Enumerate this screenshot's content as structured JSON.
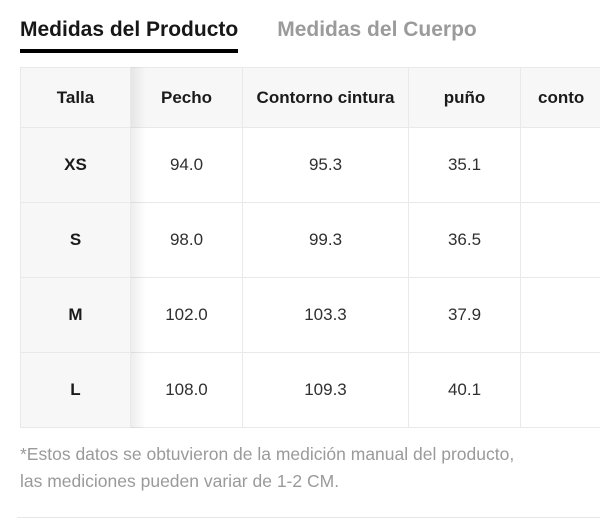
{
  "tabs": {
    "product": {
      "label": "Medidas del Producto",
      "active": true
    },
    "body": {
      "label": "Medidas del Cuerpo",
      "active": false
    }
  },
  "table": {
    "columns": [
      "Talla",
      "Pecho",
      "Contorno cintura",
      "puño",
      "conto"
    ],
    "rows": [
      [
        "XS",
        "94.0",
        "95.3",
        "35.1",
        ""
      ],
      [
        "S",
        "98.0",
        "99.3",
        "36.5",
        ""
      ],
      [
        "M",
        "102.0",
        "103.3",
        "37.9",
        ""
      ],
      [
        "L",
        "108.0",
        "109.3",
        "40.1",
        ""
      ]
    ],
    "unit_note_visible": false
  },
  "footnote": {
    "line1": "*Estos datos se obtuvieron de la medición manual del producto,",
    "line2": "las mediciones pueden variar de 1-2 CM."
  },
  "colors": {
    "tab_active": "#171717",
    "tab_inactive": "#9b9b9b",
    "tab_underline": "#000000",
    "header_bg": "#f7f7f7",
    "sticky_col_bg": "#f7f7f7",
    "cell_border": "#e9e9e9",
    "value_text": "#303030",
    "footnote_text": "#9a9a9a"
  }
}
